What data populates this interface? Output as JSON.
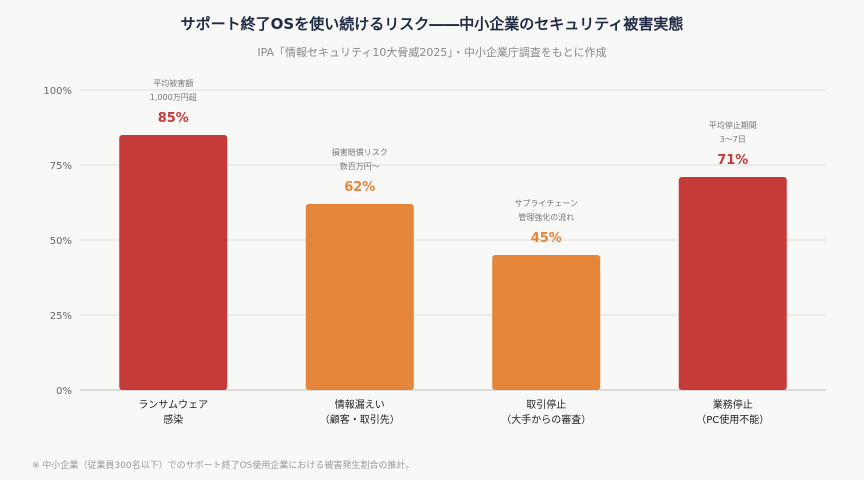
{
  "chart_data": {
    "type": "bar",
    "title": "サポート終了OSを使い続けるリスク――中小企業のセキュリティ被害実態",
    "subtitle": "IPA「情報セキュリティ10大脅威2025」・中小企業庁調査をもとに作成",
    "footnote": "※ 中小企業（従業員300名以下）でのサポート終了OS使用企業における被害発生割合の推計。",
    "ylim": [
      0,
      100
    ],
    "yticks": [
      "0%",
      "25%",
      "50%",
      "75%",
      "100%"
    ],
    "grid": true,
    "categories": [
      [
        "ランサムウェア",
        "感染"
      ],
      [
        "情報漏えい",
        "（顧客・取引先）"
      ],
      [
        "取引停止",
        "（大手からの審査）"
      ],
      [
        "業務停止",
        "（PC使用不能）"
      ]
    ],
    "values": [
      85,
      62,
      45,
      71
    ],
    "value_labels": [
      "85%",
      "62%",
      "45%",
      "71%"
    ],
    "annotations": [
      [
        "平均被害額",
        "1,000万円超"
      ],
      [
        "損害賠償リスク",
        "数百万円～"
      ],
      [
        "サプライチェーン",
        "管理強化の流れ"
      ],
      [
        "平均停止期間",
        "3～7日"
      ]
    ],
    "colors": [
      "#c43b3a",
      "#e5853a",
      "#e5853a",
      "#c43b3a"
    ]
  }
}
